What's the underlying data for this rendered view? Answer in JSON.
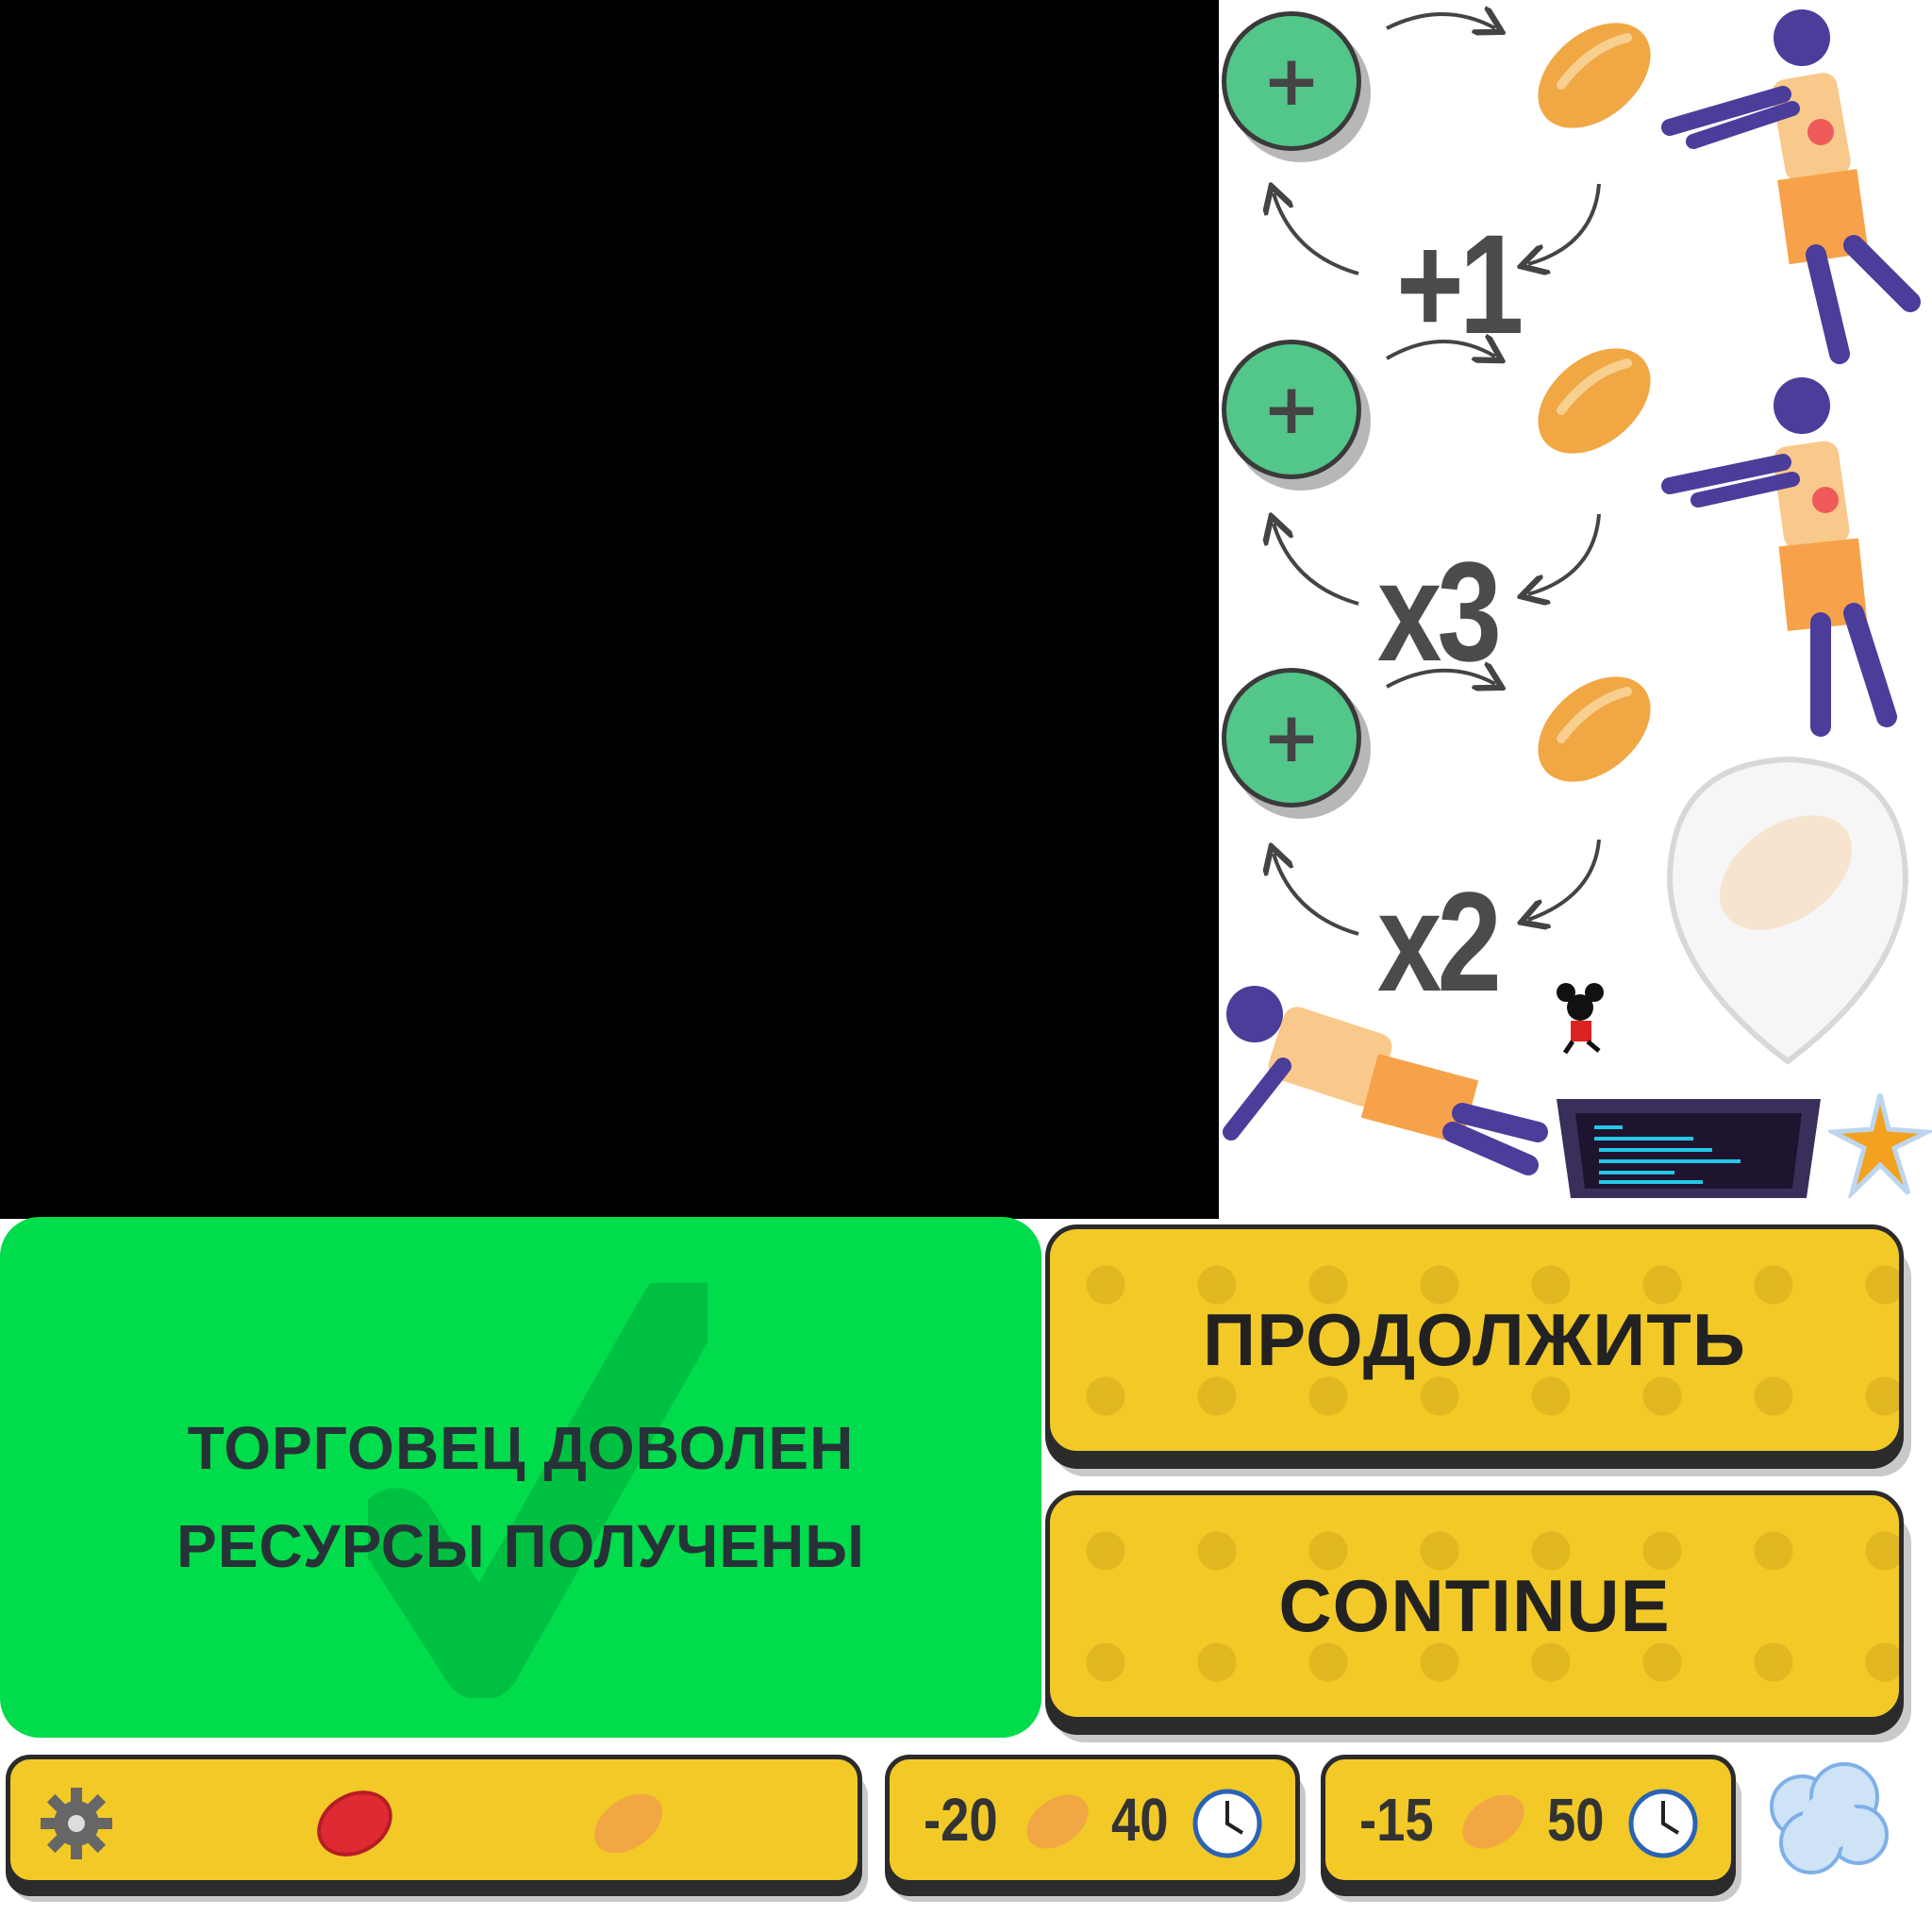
{
  "multipliers": [
    "+1",
    "x3",
    "x2"
  ],
  "status": {
    "line1": "ТОРГОВЕЦ ДОВОЛЕН",
    "line2": "РЕСУРСЫ ПОЛУЧЕНЫ"
  },
  "buttons": {
    "continue_ru": "ПРОДОЛЖИТЬ",
    "continue_en": "CONTINUE"
  },
  "costs": [
    {
      "amount": "-20",
      "time": "40"
    },
    {
      "amount": "-15",
      "time": "50"
    }
  ],
  "icons": {
    "plus": "+",
    "gear": "gear-icon",
    "bottlecap": "bottlecap-icon",
    "bread": "bread-icon",
    "clock": "clock-icon",
    "burst": "star-burst-icon",
    "puff": "smoke-puff-icon"
  },
  "colors": {
    "green_button": "#53c68a",
    "status_green": "#00dc4b",
    "yellow": "#f2c927",
    "bread": "#f0a744",
    "zombie_skin": "#4b3d9a"
  }
}
